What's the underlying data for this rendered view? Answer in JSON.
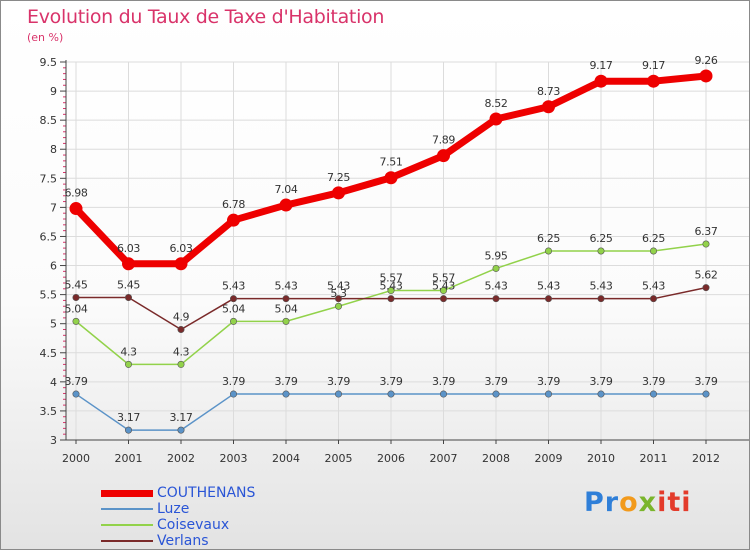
{
  "chart_data": {
    "type": "line",
    "title": "Evolution du Taux de Taxe d'Habitation",
    "ylabel": "(en %)",
    "xlabel": "",
    "x": [
      "2000",
      "2001",
      "2002",
      "2003",
      "2004",
      "2005",
      "2006",
      "2007",
      "2008",
      "2009",
      "2010",
      "2011",
      "2012"
    ],
    "ylim": [
      3,
      9.5
    ],
    "yticks": [
      "3",
      "3.5",
      "4",
      "4.5",
      "5",
      "5.5",
      "6",
      "6.5",
      "7",
      "7.5",
      "8",
      "8.5",
      "9",
      "9.5"
    ],
    "legend_position": "bottom-left",
    "series": [
      {
        "name": "COUTHENANS",
        "color": "#ee0000",
        "values": [
          6.98,
          6.03,
          6.03,
          6.78,
          7.04,
          7.25,
          7.51,
          7.89,
          8.52,
          8.73,
          9.17,
          9.17,
          9.26
        ],
        "labels": [
          "6.98",
          "6.03",
          "6.03",
          "6.78",
          "7.04",
          "7.25",
          "7.51",
          "7.89",
          "8.52",
          "8.73",
          "9.17",
          "9.17",
          "9.26"
        ]
      },
      {
        "name": "Luze",
        "color": "#5b93c8",
        "values": [
          3.79,
          3.17,
          3.17,
          3.79,
          3.79,
          3.79,
          3.79,
          3.79,
          3.79,
          3.79,
          3.79,
          3.79,
          3.79
        ],
        "labels": [
          "3.79",
          "3.17",
          "3.17",
          "3.79",
          "3.79",
          "3.79",
          "3.79",
          "3.79",
          "3.79",
          "3.79",
          "3.79",
          "3.79",
          "3.79"
        ]
      },
      {
        "name": "Coisevaux",
        "color": "#92d24a",
        "values": [
          5.04,
          4.3,
          4.3,
          5.04,
          5.04,
          5.3,
          5.57,
          5.57,
          5.95,
          6.25,
          6.25,
          6.25,
          6.37
        ],
        "labels": [
          "5.04",
          "4.3",
          "4.3",
          "5.04",
          "5.04",
          "5.3",
          "5.57",
          "5.57",
          "5.95",
          "6.25",
          "6.25",
          "6.25",
          "6.37"
        ]
      },
      {
        "name": "Verlans",
        "color": "#7a2a2a",
        "values": [
          5.45,
          5.45,
          4.9,
          5.43,
          5.43,
          5.43,
          5.43,
          5.43,
          5.43,
          5.43,
          5.43,
          5.43,
          5.62
        ],
        "labels": [
          "5.45",
          "5.45",
          "4.9",
          "5.43",
          "5.43",
          "5.43",
          "5.43",
          "5.43",
          "5.43",
          "5.43",
          "5.43",
          "5.43",
          "5.62"
        ]
      }
    ]
  },
  "branding": {
    "logo_text": [
      "Pr",
      "o",
      "x",
      "iti"
    ]
  }
}
